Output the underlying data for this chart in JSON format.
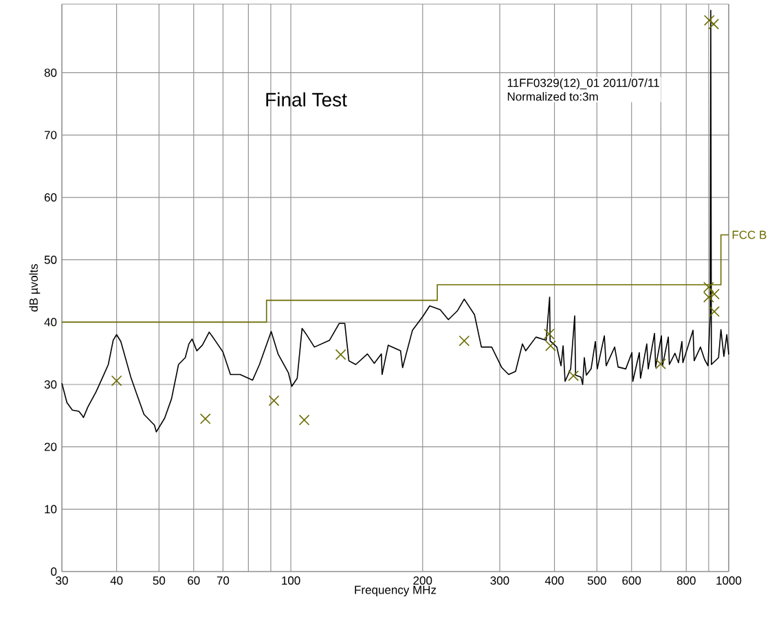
{
  "chart_data": {
    "type": "line",
    "title": "Final Test",
    "xlabel": "Frequency MHz",
    "ylabel": "dB µvolts",
    "annotations": [
      "11FF0329(12)_01 2011/07/11",
      "Normalized to:3m"
    ],
    "log": "x",
    "grid": true,
    "xlim": [
      30,
      1000
    ],
    "xticks": [
      30,
      40,
      50,
      60,
      70,
      {
        "value": 80,
        "label": null
      },
      {
        "value": 90,
        "label": null
      },
      100,
      200,
      300,
      400,
      500,
      600,
      {
        "value": 700,
        "label": null
      },
      800,
      {
        "value": 900,
        "label": null
      },
      1000
    ],
    "ylim": [
      0,
      91
    ],
    "yticks": [
      0,
      10,
      20,
      30,
      40,
      50,
      60,
      70,
      80
    ],
    "series": [
      {
        "type": "line",
        "color": "#000000",
        "x": [
          30,
          30.8,
          31.7,
          32.8,
          33.4,
          33.6,
          34.4,
          35.9,
          37.2,
          38.3,
          39.3,
          40.0,
          40.9,
          43.1,
          44.6,
          46.2,
          48.8,
          49.3,
          51.5,
          53.4,
          55.4,
          57.4,
          58.5,
          59.5,
          61.0,
          62.8,
          65.1,
          66.8,
          70.0,
          72.8,
          76.6,
          81.8,
          84.8,
          90.2,
          93.5,
          98.7,
          100.5,
          103.4,
          106.1,
          108.1,
          113.2,
          122.6,
          129,
          132.8,
          135.7,
          140.7,
          149.6,
          155.1,
          161.0,
          161.6,
          166.9,
          178.1,
          180,
          189.6,
          200.1,
          207.6,
          219.3,
          229,
          240,
          248.9,
          262.7,
          272.4,
          287.6,
          303.3,
          314.4,
          326,
          338,
          344,
          363,
          383,
          390,
          391,
          405,
          414,
          418.6,
          423,
          435.6,
          445,
          447,
          459.6,
          464,
          468,
          473,
          485,
          496,
          501,
          520,
          525,
          549,
          559,
          582,
          601,
          604,
          625,
          629,
          650,
          655,
          677,
          681,
          702,
          706,
          728,
          732,
          754,
          768,
          782,
          786,
          829,
          834,
          862,
          881,
          897,
          907,
          910,
          913,
          948,
          960,
          975,
          990,
          1000
        ],
        "values": [
          30.2,
          27.1,
          25.9,
          25.7,
          25.0,
          24.7,
          26.4,
          28.8,
          31.2,
          33.2,
          37.1,
          38.0,
          36.9,
          31.2,
          28.2,
          25.2,
          23.5,
          22.4,
          24.6,
          27.7,
          33.2,
          34.3,
          36.5,
          37.3,
          35.4,
          36.3,
          38.4,
          37.3,
          35.2,
          31.6,
          31.6,
          30.7,
          33.2,
          38.5,
          34.9,
          31.9,
          29.7,
          31.0,
          39.0,
          38.2,
          36.0,
          37.1,
          39.8,
          39.8,
          33.8,
          33.2,
          34.9,
          33.4,
          34.9,
          31.6,
          36.3,
          35.4,
          32.7,
          38.7,
          40.9,
          42.6,
          42.0,
          40.4,
          41.8,
          43.7,
          41.2,
          36.0,
          36.0,
          32.7,
          31.6,
          32.1,
          36.5,
          35.4,
          37.6,
          37.1,
          44.0,
          37.0,
          36.0,
          33.0,
          36.2,
          30.5,
          32.5,
          41.0,
          31.5,
          31.2,
          30.0,
          34.3,
          31.5,
          32.5,
          36.9,
          32.5,
          37.8,
          33.0,
          36.0,
          32.8,
          32.5,
          35.1,
          30.5,
          35.1,
          31.0,
          36.5,
          32.5,
          38.2,
          32.8,
          37.8,
          33.0,
          37.6,
          33.2,
          35.0,
          33.5,
          36.9,
          33.5,
          38.7,
          33.8,
          36.0,
          34.0,
          33.0,
          41.0,
          90.0,
          33.2,
          34.3,
          38.8,
          34.5,
          38.0,
          34.8
        ]
      },
      {
        "type": "step",
        "name": "FCC B",
        "color": "#6b6b00",
        "x": [
          30,
          88,
          216,
          960,
          1000
        ],
        "values": [
          40,
          43.5,
          46,
          54,
          54
        ]
      },
      {
        "type": "scatter",
        "marker": "cross",
        "color": "#6b6b00",
        "x": [
          40.0,
          63.8,
          91.5,
          107.3,
          130,
          248.9,
          389,
          392,
          442,
          699,
          900,
          900,
          927,
          927,
          903,
          924
        ],
        "values": [
          30.6,
          24.5,
          27.4,
          24.3,
          34.8,
          37.0,
          38.1,
          36.2,
          31.4,
          33.3,
          45.6,
          44.0,
          44.5,
          41.7,
          88.4,
          87.8
        ]
      }
    ]
  }
}
